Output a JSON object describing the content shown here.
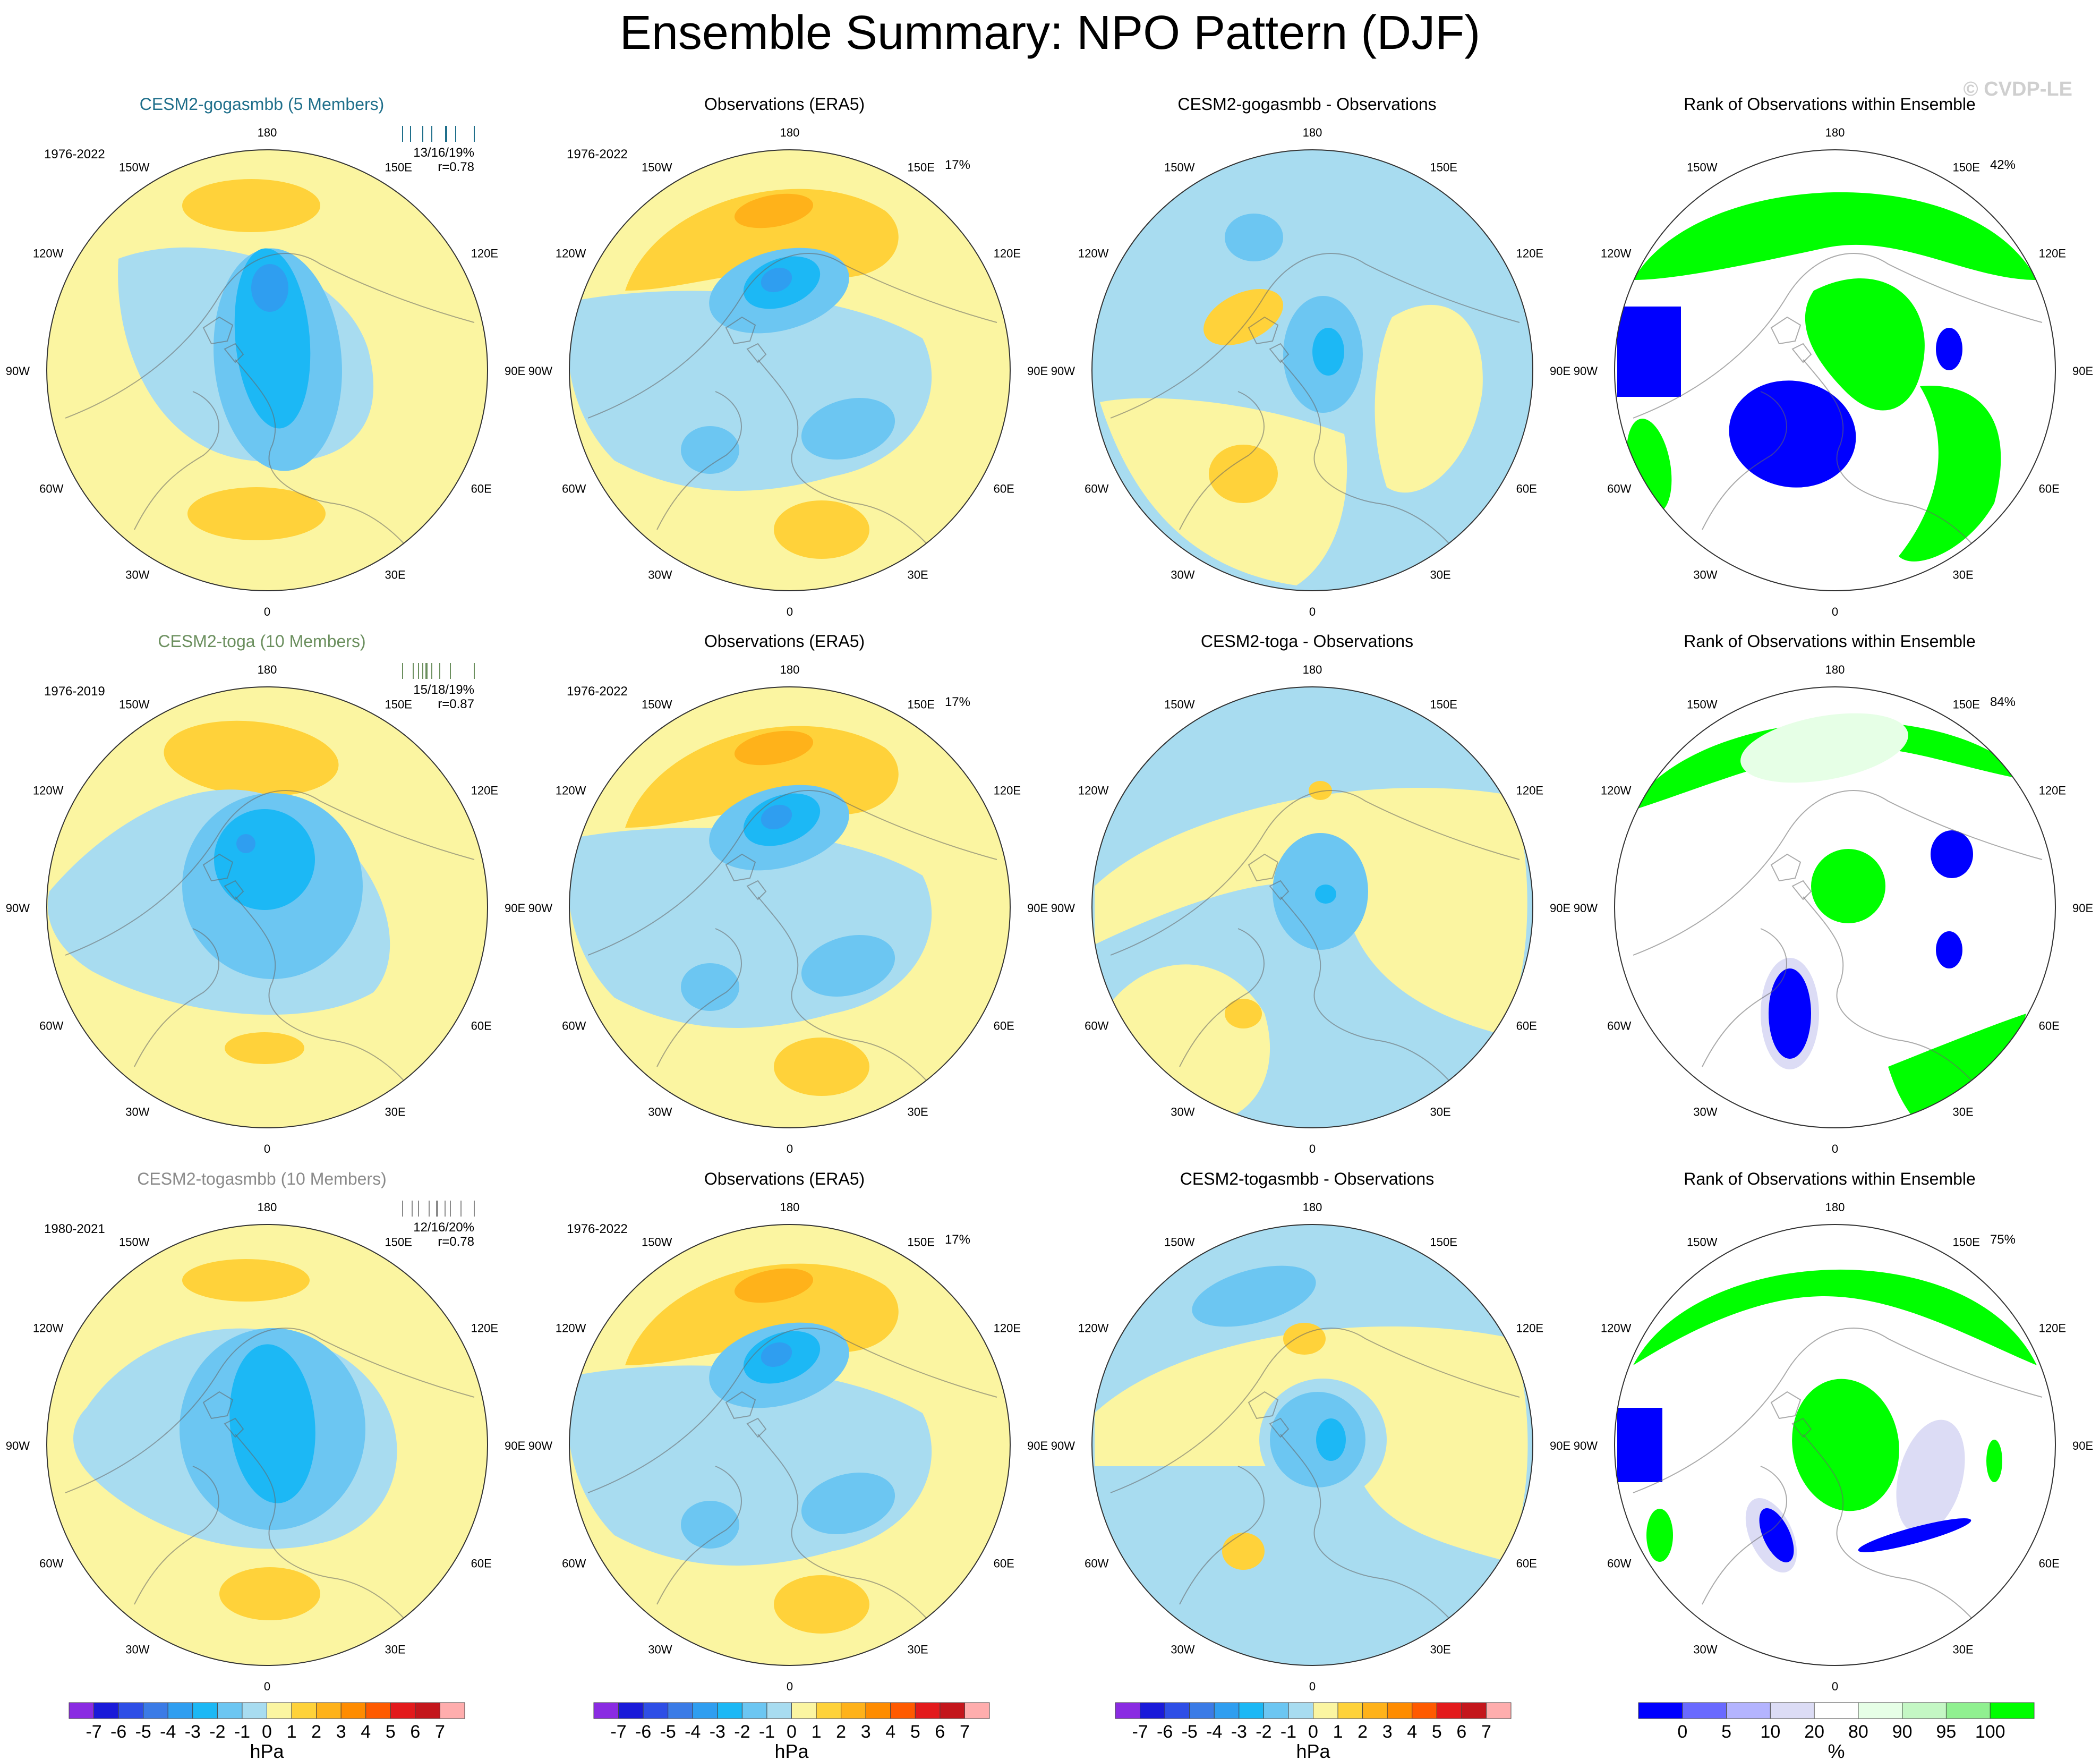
{
  "figure": {
    "title": "Ensemble Summary: NPO Pattern (DJF)",
    "watermark": "© CVDP-LE",
    "lon_labels": [
      "180",
      "150E",
      "120E",
      "90E",
      "60E",
      "30E",
      "0",
      "30W",
      "60W",
      "90W",
      "120W",
      "150W"
    ],
    "missing_color": "#ffffff"
  },
  "chart_data": {
    "type": "heatmap",
    "projection": "north-polar-stereographic",
    "variable": "sea level pressure anomaly (NPO pattern)",
    "season": "DJF",
    "rows": [
      {
        "ensemble": {
          "title": "CESM2-gogasmbb (5 Members)",
          "title_color": "#1f6f8b",
          "years": "1976-2022",
          "stats": "13/16/19%",
          "r": "r=0.78",
          "tick_color": "#1f6f8b"
        },
        "observations": {
          "title": "Observations (ERA5)",
          "years": "1976-2022",
          "pct": "17%"
        },
        "difference": {
          "title": "CESM2-gogasmbb - Observations"
        },
        "rank": {
          "title": "Rank of Observations within Ensemble",
          "pct": "42%"
        }
      },
      {
        "ensemble": {
          "title": "CESM2-toga (10 Members)",
          "title_color": "#6b8f5e",
          "years": "1976-2019",
          "stats": "15/18/19%",
          "r": "r=0.87",
          "tick_color": "#6b8f5e"
        },
        "observations": {
          "title": "Observations (ERA5)",
          "years": "1976-2022",
          "pct": "17%"
        },
        "difference": {
          "title": "CESM2-toga - Observations"
        },
        "rank": {
          "title": "Rank of Observations within Ensemble",
          "pct": "84%"
        }
      },
      {
        "ensemble": {
          "title": "CESM2-togasmbb (10 Members)",
          "title_color": "#8a8a8a",
          "years": "1980-2021",
          "stats": "12/16/20%",
          "r": "r=0.78",
          "tick_color": "#8a8a8a"
        },
        "observations": {
          "title": "Observations (ERA5)",
          "years": "1976-2022",
          "pct": "17%"
        },
        "difference": {
          "title": "CESM2-togasmbb - Observations"
        },
        "rank": {
          "title": "Rank of Observations within Ensemble",
          "pct": "75%"
        }
      }
    ],
    "colorbars": {
      "hpa": {
        "unit": "hPa",
        "labels": [
          "-7",
          "-6",
          "-5",
          "-4",
          "-3",
          "-2",
          "-1",
          "0",
          "1",
          "2",
          "3",
          "4",
          "5",
          "6",
          "7"
        ],
        "colors": [
          "#8a2be2",
          "#1a1ad9",
          "#2e4ee6",
          "#3b7be6",
          "#2f9ef0",
          "#1cb8f5",
          "#6cc6f2",
          "#a8dcf0",
          "#fbf5a1",
          "#ffd23a",
          "#ffb21a",
          "#ff8c00",
          "#ff5a00",
          "#e31a1c",
          "#c4161c",
          "#ffadad"
        ]
      },
      "rank": {
        "unit": "%",
        "labels": [
          "0",
          "5",
          "10",
          "20",
          "80",
          "90",
          "95",
          "100"
        ],
        "colors": [
          "#0000ff",
          "#6a6aff",
          "#b4b4ff",
          "#dcdcf5",
          "#ffffff",
          "#e6ffe6",
          "#c4f7c4",
          "#90f090",
          "#00ff00"
        ]
      }
    }
  }
}
